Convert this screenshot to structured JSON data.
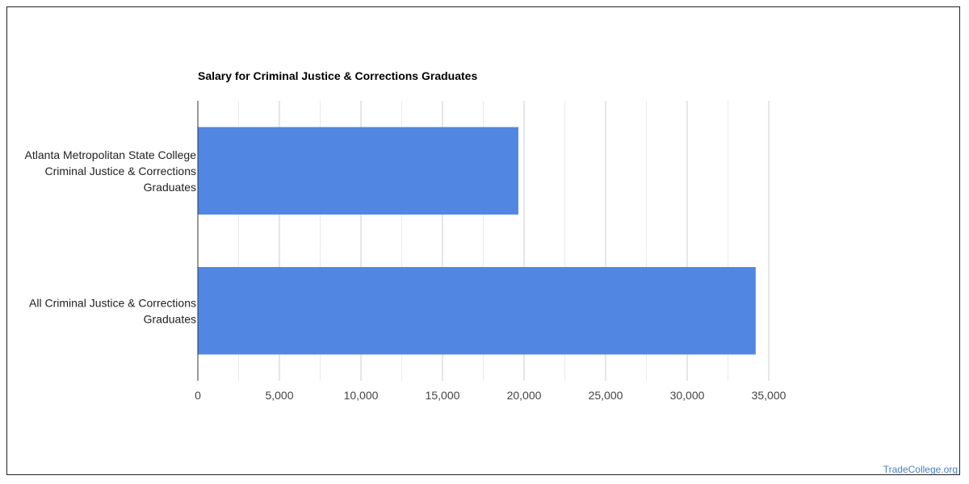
{
  "chart_data": {
    "type": "bar",
    "orientation": "horizontal",
    "title": "Salary for Criminal Justice & Corrections Graduates",
    "categories": [
      [
        "Atlanta Metropolitan State College",
        "Criminal Justice & Corrections",
        "Graduates"
      ],
      [
        "All Criminal Justice & Corrections",
        "Graduates"
      ]
    ],
    "values": [
      19650,
      34200
    ],
    "xlim": [
      0,
      35000
    ],
    "xticks": [
      "0",
      "5,000",
      "10,000",
      "15,000",
      "20,000",
      "25,000",
      "30,000",
      "35,000"
    ],
    "xtick_values": [
      0,
      5000,
      10000,
      15000,
      20000,
      25000,
      30000,
      35000
    ],
    "grid": true,
    "bar_color": "#5286e3",
    "xlabel": "",
    "ylabel": ""
  },
  "watermark": "TradeCollege.org"
}
